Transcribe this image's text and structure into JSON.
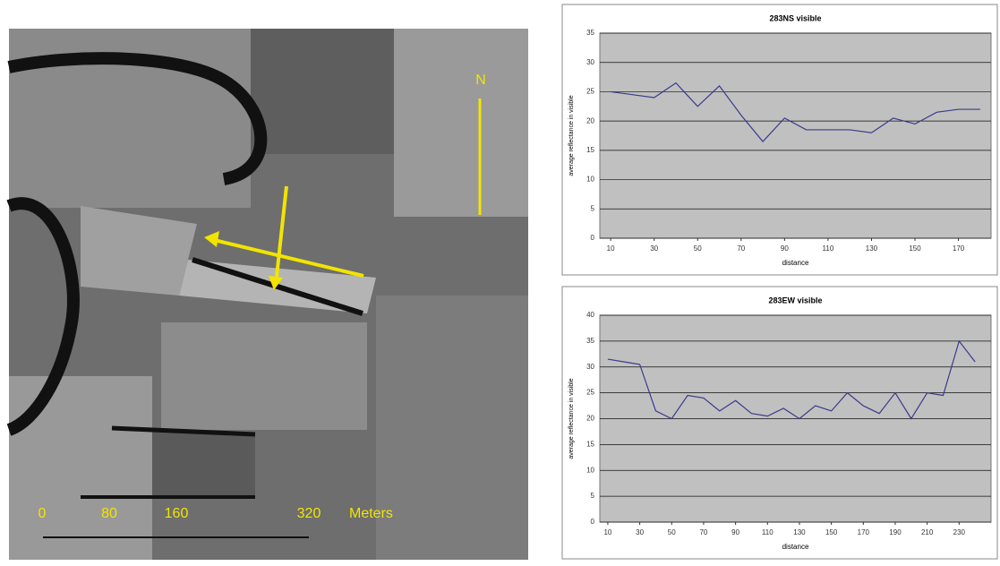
{
  "map": {
    "north": "N",
    "scale_labels": [
      "0",
      "80",
      "160",
      "320"
    ],
    "unit": "Meters"
  },
  "chart_data": [
    {
      "type": "line",
      "title": "283NS visible",
      "xlabel": "distance",
      "ylabel": "average reflectance in visible",
      "x": [
        10,
        20,
        30,
        40,
        50,
        60,
        70,
        80,
        90,
        100,
        110,
        120,
        130,
        140,
        150,
        160,
        170,
        180
      ],
      "series": [
        {
          "name": "283NS visible",
          "color": "#3a3a8c",
          "values": [
            25,
            24.5,
            24,
            26.5,
            22.5,
            26,
            21,
            16.5,
            20.5,
            18.5,
            18.5,
            18.5,
            18,
            20.5,
            19.5,
            21.5,
            22,
            22
          ]
        }
      ],
      "xlim": [
        5,
        185
      ],
      "xticks": [
        10,
        30,
        50,
        70,
        90,
        110,
        130,
        150,
        170
      ],
      "ylim": [
        0,
        35
      ],
      "yticks": [
        0,
        5,
        10,
        15,
        20,
        25,
        30,
        35
      ],
      "grid": true
    },
    {
      "type": "line",
      "title": "283EW visible",
      "xlabel": "distance",
      "ylabel": "average reflectance in visible",
      "x": [
        10,
        20,
        30,
        40,
        50,
        60,
        70,
        80,
        90,
        100,
        110,
        120,
        130,
        140,
        150,
        160,
        170,
        180,
        190,
        200,
        210,
        220,
        230,
        240
      ],
      "series": [
        {
          "name": "283EW visible",
          "color": "#3a3a8c",
          "values": [
            31.5,
            31,
            30.5,
            21.5,
            20,
            24.5,
            24,
            21.5,
            23.5,
            21,
            20.5,
            22,
            20,
            22.5,
            21.5,
            25,
            22.5,
            21,
            25,
            20,
            25,
            24.5,
            35,
            31
          ]
        }
      ],
      "xlim": [
        5,
        250
      ],
      "xticks": [
        10,
        30,
        50,
        70,
        90,
        110,
        130,
        150,
        170,
        190,
        210,
        230
      ],
      "ylim": [
        0,
        40
      ],
      "yticks": [
        0,
        5,
        10,
        15,
        20,
        25,
        30,
        35,
        40
      ],
      "grid": true
    }
  ]
}
